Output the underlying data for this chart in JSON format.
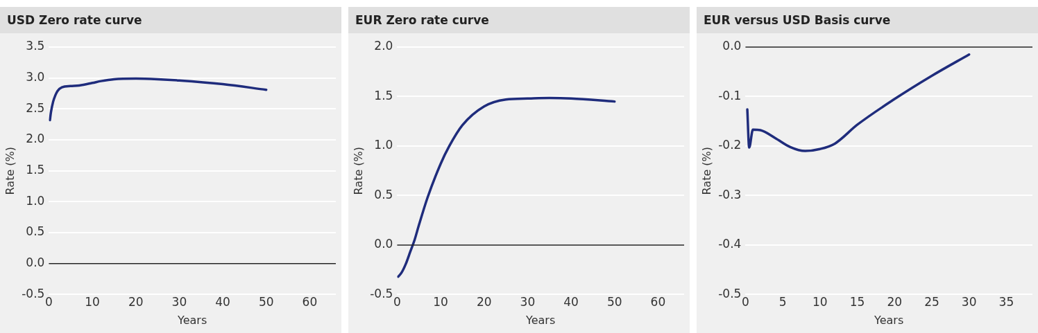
{
  "chart_data": [
    {
      "type": "line",
      "title": "USD Zero rate curve",
      "xlabel": "Years",
      "ylabel": "Rate (%)",
      "x": [
        0.25,
        0.5,
        1,
        1.5,
        2,
        3,
        5,
        7,
        10,
        12,
        15,
        20,
        25,
        30,
        40,
        50
      ],
      "series": [
        {
          "color": "#1f2c7c",
          "values": [
            2.32,
            2.45,
            2.62,
            2.72,
            2.79,
            2.85,
            2.87,
            2.88,
            2.92,
            2.95,
            2.98,
            2.99,
            2.98,
            2.96,
            2.9,
            2.81
          ]
        }
      ],
      "xlim": [
        0,
        66
      ],
      "xticks": [
        0,
        10,
        20,
        30,
        40,
        50,
        60
      ],
      "ylim": [
        -0.5,
        3.5
      ],
      "yticks": [
        {
          "value": -0.5,
          "label": "-0.5"
        },
        {
          "value": 0,
          "label": "0.0"
        },
        {
          "value": 0.5,
          "label": "0.5"
        },
        {
          "value": 1,
          "label": "1.0"
        },
        {
          "value": 1.5,
          "label": "1.5"
        },
        {
          "value": 2,
          "label": "2.0"
        },
        {
          "value": 2.5,
          "label": "2.5"
        },
        {
          "value": 3,
          "label": "3.0"
        },
        {
          "value": 3.5,
          "label": "3.5"
        }
      ],
      "ref_lines": [
        {
          "axis": "y",
          "value": 0,
          "color": "#222222"
        }
      ],
      "grid": "y",
      "legend": false,
      "marker": "none",
      "line_style": "solid"
    },
    {
      "type": "line",
      "title": "EUR Zero rate curve",
      "xlabel": "Years",
      "ylabel": "Rate (%)",
      "x": [
        0.25,
        1,
        2,
        3,
        4,
        5,
        7,
        10,
        12,
        15,
        20,
        25,
        30,
        35,
        40,
        50
      ],
      "series": [
        {
          "color": "#1f2c7c",
          "values": [
            -0.32,
            -0.28,
            -0.19,
            -0.07,
            0.05,
            0.2,
            0.48,
            0.82,
            1.0,
            1.21,
            1.4,
            1.47,
            1.48,
            1.485,
            1.48,
            1.45
          ]
        }
      ],
      "xlim": [
        0,
        66
      ],
      "xticks": [
        0,
        10,
        20,
        30,
        40,
        50,
        60
      ],
      "ylim": [
        -0.5,
        2.0
      ],
      "yticks": [
        {
          "value": -0.5,
          "label": "-0.5"
        },
        {
          "value": 0,
          "label": "0.0"
        },
        {
          "value": 0.5,
          "label": "0.5"
        },
        {
          "value": 1,
          "label": "1.0"
        },
        {
          "value": 1.5,
          "label": "1.5"
        },
        {
          "value": 2,
          "label": "2.0"
        }
      ],
      "ref_lines": [
        {
          "axis": "y",
          "value": 0,
          "color": "#222222"
        }
      ],
      "grid": "y",
      "legend": false,
      "marker": "none",
      "line_style": "solid"
    },
    {
      "type": "line",
      "title": "EUR versus USD Basis curve",
      "xlabel": "Years",
      "ylabel": "Rate (%)",
      "x": [
        0.25,
        0.5,
        1,
        2,
        4,
        6,
        8,
        10,
        12,
        15,
        20,
        25,
        30
      ],
      "series": [
        {
          "color": "#1f2c7c",
          "values": [
            -0.126,
            -0.203,
            -0.167,
            -0.168,
            -0.184,
            -0.202,
            -0.21,
            -0.206,
            -0.195,
            -0.157,
            -0.105,
            -0.058,
            -0.015
          ]
        }
      ],
      "xlim": [
        0,
        38.5
      ],
      "xticks": [
        0,
        5,
        10,
        15,
        20,
        25,
        30,
        35
      ],
      "ylim": [
        -0.5,
        0.0
      ],
      "yticks": [
        {
          "value": -0.5,
          "label": "-0.5"
        },
        {
          "value": -0.4,
          "label": "-0.4"
        },
        {
          "value": -0.3,
          "label": "-0.3"
        },
        {
          "value": -0.2,
          "label": "-0.2"
        },
        {
          "value": -0.1,
          "label": "-0.1"
        },
        {
          "value": 0,
          "label": "0.0"
        }
      ],
      "ref_lines": [
        {
          "axis": "y",
          "value": 0,
          "color": "#222222"
        }
      ],
      "grid": "y",
      "legend": false,
      "marker": "none",
      "line_style": "solid"
    }
  ]
}
